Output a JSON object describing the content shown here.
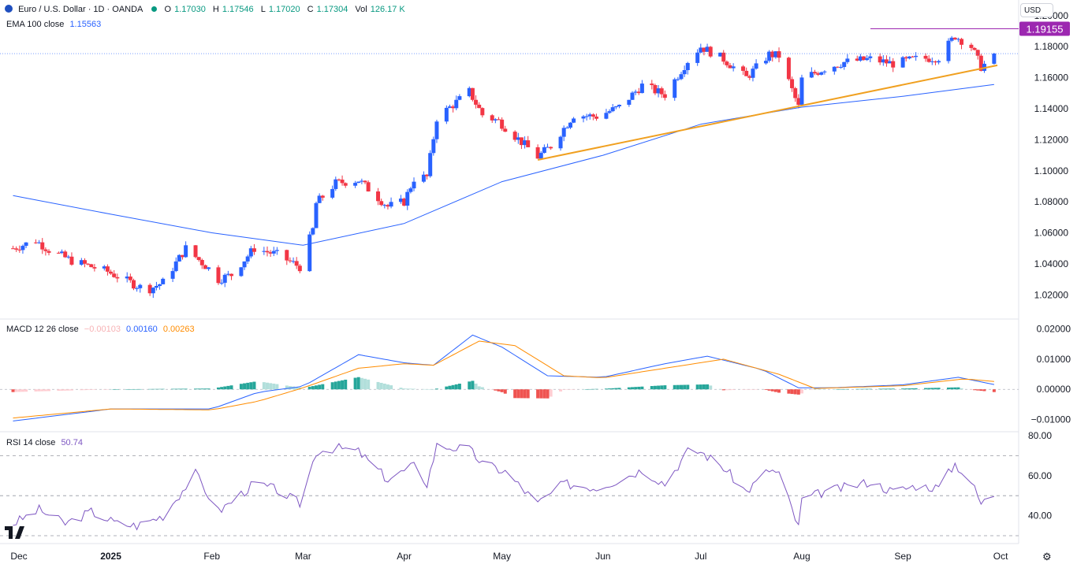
{
  "header": {
    "symbol": "Euro / U.S. Dollar · 1D · OANDA",
    "open_label": "O",
    "open": "1.17030",
    "high_label": "H",
    "high": "1.17546",
    "low_label": "L",
    "low": "1.17020",
    "close_label": "C",
    "close": "1.17304",
    "vol_label": "Vol",
    "vol": "126.17 K"
  },
  "currency": "USD",
  "ema": {
    "label": "EMA 100 close",
    "value": "1.15563"
  },
  "macd": {
    "label": "MACD 12 26 close",
    "hist": "−0.00103",
    "macd": "0.00160",
    "signal": "0.00263"
  },
  "rsi": {
    "label": "RSI 14 close",
    "value": "50.74"
  },
  "colors": {
    "up": "#2962ff",
    "down": "#f23645",
    "ema": "#2962ff",
    "trend": "#f0a020",
    "macd_line": "#2962ff",
    "signal_line": "#ff8c00",
    "hist_pos": "#26a69a",
    "hist_neg": "#ef5350",
    "rsi_line": "#7e57c2",
    "resistance": "#9c27b0"
  },
  "chart_data": [
    {
      "type": "candlestick",
      "title": "Euro / U.S. Dollar · 1D · OANDA",
      "ylim": [
        1.01,
        1.205
      ],
      "y_ticks": [
        "1.20000",
        "1.18000",
        "1.16000",
        "1.14000",
        "1.12000",
        "1.10000",
        "1.08000",
        "1.06000",
        "1.04000",
        "1.02000"
      ],
      "x_ticks": [
        "Dec",
        "2025",
        "Feb",
        "Mar",
        "Apr",
        "May",
        "Jun",
        "Jul",
        "Aug",
        "Sep",
        "Oct"
      ],
      "resistance_label": "1.19155",
      "resistance": 1.19155,
      "close_path": [
        [
          "2024-12-02",
          1.05
        ],
        [
          "2024-12-09",
          1.055
        ],
        [
          "2024-12-13",
          1.049
        ],
        [
          "2024-12-20",
          1.042
        ],
        [
          "2024-12-31",
          1.035
        ],
        [
          "2025-01-10",
          1.025
        ],
        [
          "2025-01-13",
          1.024
        ],
        [
          "2025-01-17",
          1.028
        ],
        [
          "2025-01-24",
          1.05
        ],
        [
          "2025-01-31",
          1.037
        ],
        [
          "2025-02-03",
          1.03
        ],
        [
          "2025-02-07",
          1.033
        ],
        [
          "2025-02-14",
          1.05
        ],
        [
          "2025-02-21",
          1.046
        ],
        [
          "2025-02-28",
          1.038
        ],
        [
          "2025-03-04",
          1.062
        ],
        [
          "2025-03-05",
          1.079
        ],
        [
          "2025-03-11",
          1.092
        ],
        [
          "2025-03-18",
          1.094
        ],
        [
          "2025-03-27",
          1.077
        ],
        [
          "2025-04-01",
          1.08
        ],
        [
          "2025-04-04",
          1.095
        ],
        [
          "2025-04-08",
          1.096
        ],
        [
          "2025-04-11",
          1.134
        ],
        [
          "2025-04-21",
          1.151
        ],
        [
          "2025-04-25",
          1.136
        ],
        [
          "2025-04-30",
          1.132
        ],
        [
          "2025-05-12",
          1.109
        ],
        [
          "2025-05-16",
          1.116
        ],
        [
          "2025-05-23",
          1.136
        ],
        [
          "2025-05-30",
          1.135
        ],
        [
          "2025-06-06",
          1.141
        ],
        [
          "2025-06-13",
          1.155
        ],
        [
          "2025-06-20",
          1.149
        ],
        [
          "2025-06-27",
          1.171
        ],
        [
          "2025-07-01",
          1.18
        ],
        [
          "2025-07-08",
          1.172
        ],
        [
          "2025-07-15",
          1.16
        ],
        [
          "2025-07-22",
          1.175
        ],
        [
          "2025-07-25",
          1.174
        ],
        [
          "2025-07-31",
          1.141
        ],
        [
          "2025-08-01",
          1.159
        ],
        [
          "2025-08-08",
          1.166
        ],
        [
          "2025-08-14",
          1.17
        ],
        [
          "2025-08-22",
          1.172
        ],
        [
          "2025-08-29",
          1.169
        ],
        [
          "2025-09-05",
          1.172
        ],
        [
          "2025-09-12",
          1.173
        ],
        [
          "2025-09-17",
          1.187
        ],
        [
          "2025-09-22",
          1.18
        ],
        [
          "2025-09-25",
          1.167
        ],
        [
          "2025-09-29",
          1.173
        ]
      ],
      "series": [
        {
          "name": "EMA 100 close",
          "type": "line",
          "value_last": 1.15563,
          "points": [
            [
              "2024-12-02",
              1.084
            ],
            [
              "2025-01-01",
              1.072
            ],
            [
              "2025-02-01",
              1.06
            ],
            [
              "2025-03-01",
              1.052
            ],
            [
              "2025-04-01",
              1.066
            ],
            [
              "2025-05-01",
              1.093
            ],
            [
              "2025-06-01",
              1.11
            ],
            [
              "2025-07-01",
              1.13
            ],
            [
              "2025-08-01",
              1.141
            ],
            [
              "2025-09-01",
              1.148
            ],
            [
              "2025-09-29",
              1.1556
            ]
          ]
        },
        {
          "type": "trendline",
          "points": [
            [
              "2025-05-12",
              1.107
            ],
            [
              "2025-09-30",
              1.168
            ]
          ]
        }
      ]
    },
    {
      "type": "line",
      "title": "MACD 12 26 close",
      "ylim": [
        -0.013,
        0.022
      ],
      "y_ticks": [
        "0.02000",
        "0.01000",
        "0.00000",
        "−0.01000"
      ],
      "series": [
        {
          "name": "MACD",
          "points": [
            [
              "2024-12-02",
              -0.0105
            ],
            [
              "2025-01-01",
              -0.0065
            ],
            [
              "2025-02-01",
              -0.0065
            ],
            [
              "2025-02-15",
              -0.001
            ],
            [
              "2025-03-01",
              0.001
            ],
            [
              "2025-03-18",
              0.0115
            ],
            [
              "2025-04-01",
              0.0088
            ],
            [
              "2025-04-10",
              0.008
            ],
            [
              "2025-04-22",
              0.018
            ],
            [
              "2025-05-01",
              0.014
            ],
            [
              "2025-05-15",
              0.0045
            ],
            [
              "2025-06-01",
              0.004
            ],
            [
              "2025-06-20",
              0.0085
            ],
            [
              "2025-07-03",
              0.011
            ],
            [
              "2025-07-20",
              0.0065
            ],
            [
              "2025-07-31",
              0.0005
            ],
            [
              "2025-08-10",
              0.0005
            ],
            [
              "2025-09-01",
              0.0015
            ],
            [
              "2025-09-18",
              0.004
            ],
            [
              "2025-09-29",
              0.0016
            ]
          ]
        },
        {
          "name": "Signal",
          "points": [
            [
              "2024-12-02",
              -0.0095
            ],
            [
              "2025-01-01",
              -0.0065
            ],
            [
              "2025-02-01",
              -0.0068
            ],
            [
              "2025-02-15",
              -0.004
            ],
            [
              "2025-03-01",
              0.0005
            ],
            [
              "2025-03-18",
              0.007
            ],
            [
              "2025-04-01",
              0.0085
            ],
            [
              "2025-04-10",
              0.008
            ],
            [
              "2025-04-24",
              0.016
            ],
            [
              "2025-05-05",
              0.0145
            ],
            [
              "2025-05-20",
              0.0045
            ],
            [
              "2025-06-01",
              0.0038
            ],
            [
              "2025-06-20",
              0.007
            ],
            [
              "2025-07-08",
              0.01
            ],
            [
              "2025-07-25",
              0.005
            ],
            [
              "2025-08-05",
              0.0003
            ],
            [
              "2025-09-01",
              0.0012
            ],
            [
              "2025-09-20",
              0.0035
            ],
            [
              "2025-09-29",
              0.0026
            ]
          ]
        }
      ]
    },
    {
      "type": "line",
      "title": "RSI 14 close",
      "ylim": [
        30,
        80
      ],
      "y_ticks": [
        "80.00",
        "60.00",
        "40.00"
      ],
      "bands": [
        70,
        50,
        30
      ],
      "series": [
        {
          "name": "RSI",
          "points": [
            [
              "2024-12-02",
              36
            ],
            [
              "2024-12-10",
              43
            ],
            [
              "2024-12-18",
              36
            ],
            [
              "2024-12-26",
              42
            ],
            [
              "2025-01-03",
              36
            ],
            [
              "2025-01-09",
              35
            ],
            [
              "2025-01-17",
              40
            ],
            [
              "2025-01-27",
              61
            ],
            [
              "2025-02-03",
              42
            ],
            [
              "2025-02-14",
              56
            ],
            [
              "2025-02-21",
              53
            ],
            [
              "2025-02-28",
              46
            ],
            [
              "2025-03-05",
              72
            ],
            [
              "2025-03-11",
              74
            ],
            [
              "2025-03-18",
              72
            ],
            [
              "2025-03-27",
              58
            ],
            [
              "2025-04-04",
              65
            ],
            [
              "2025-04-08",
              56
            ],
            [
              "2025-04-11",
              75
            ],
            [
              "2025-04-21",
              73
            ],
            [
              "2025-04-25",
              66
            ],
            [
              "2025-05-02",
              62
            ],
            [
              "2025-05-12",
              46
            ],
            [
              "2025-05-20",
              56
            ],
            [
              "2025-05-30",
              54
            ],
            [
              "2025-06-06",
              58
            ],
            [
              "2025-06-13",
              63
            ],
            [
              "2025-06-20",
              56
            ],
            [
              "2025-06-27",
              72
            ],
            [
              "2025-07-01",
              72
            ],
            [
              "2025-07-08",
              64
            ],
            [
              "2025-07-15",
              52
            ],
            [
              "2025-07-22",
              63
            ],
            [
              "2025-07-25",
              61
            ],
            [
              "2025-07-31",
              34
            ],
            [
              "2025-08-01",
              48
            ],
            [
              "2025-08-08",
              52
            ],
            [
              "2025-08-14",
              54
            ],
            [
              "2025-08-22",
              57
            ],
            [
              "2025-08-29",
              52
            ],
            [
              "2025-09-05",
              55
            ],
            [
              "2025-09-12",
              54
            ],
            [
              "2025-09-17",
              66
            ],
            [
              "2025-09-22",
              57
            ],
            [
              "2025-09-25",
              46
            ],
            [
              "2025-09-29",
              50.74
            ]
          ]
        }
      ]
    }
  ]
}
